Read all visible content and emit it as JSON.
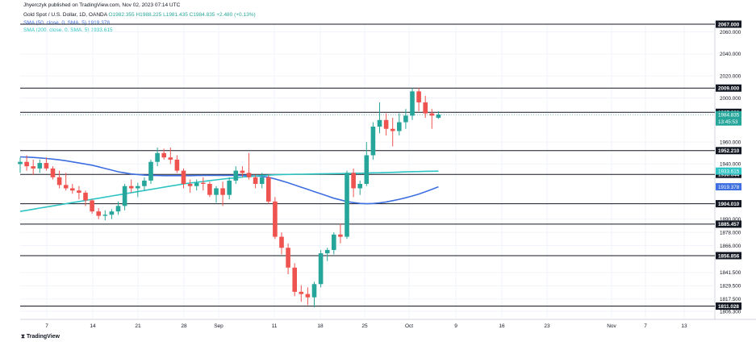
{
  "header": {
    "published": "Jhyerczyk published on TradingView.com, Nov 02, 2023 07:14 UTC",
    "symbol": "Gold Spot / U.S. Dollar, 1D, OANDA",
    "ohlc": "O1982.355 H1988.225 L1981.435 C1984.835 +2.480 (+0.13%)",
    "sma50": "SMA (50, close, 0, SMA, 5) 1919.378",
    "sma200": "SMA (200, close, 0, SMA, 5) 1933.615"
  },
  "brand": "TradingView",
  "colors": {
    "up": "#26a69a",
    "down": "#ef5350",
    "sma50": "#3d6fe0",
    "sma200": "#2ec4c4",
    "level": "#131722"
  },
  "chart_data": {
    "type": "candlestick",
    "y_range": [
      1806.3,
      2067
    ],
    "y_ticks": [
      "2060.000",
      "2040.000",
      "2020.000",
      "2000.000",
      "1960.000",
      "1940.000",
      "1890.000",
      "1878.000",
      "1866.000",
      "1841.500",
      "1829.500",
      "1817.500",
      "1806.300"
    ],
    "x_ticks": [
      "7",
      "14",
      "21",
      "28",
      "Sep",
      "11",
      "18",
      "25",
      "Oct",
      "9",
      "16",
      "23",
      "Nov",
      "7",
      "13"
    ],
    "levels": [
      "2067.000",
      "2009.000",
      "1987.000",
      "1952.210",
      "1930.644",
      "1904.010",
      "1885.457",
      "1856.856",
      "1811.028"
    ],
    "price_label": "1984.835",
    "countdown_label": "13:45:53",
    "sma200_label": "1933.615",
    "sma50_label": "1919.378",
    "candles": [
      {
        "o": 1940,
        "h": 1946,
        "l": 1932,
        "c": 1942
      },
      {
        "o": 1942,
        "h": 1948,
        "l": 1934,
        "c": 1938
      },
      {
        "o": 1938,
        "h": 1944,
        "l": 1930,
        "c": 1936
      },
      {
        "o": 1936,
        "h": 1944,
        "l": 1932,
        "c": 1941
      },
      {
        "o": 1941,
        "h": 1946,
        "l": 1934,
        "c": 1936
      },
      {
        "o": 1936,
        "h": 1938,
        "l": 1926,
        "c": 1928
      },
      {
        "o": 1928,
        "h": 1934,
        "l": 1918,
        "c": 1921
      },
      {
        "o": 1921,
        "h": 1932,
        "l": 1916,
        "c": 1918
      },
      {
        "o": 1918,
        "h": 1922,
        "l": 1913,
        "c": 1916
      },
      {
        "o": 1916,
        "h": 1920,
        "l": 1908,
        "c": 1914
      },
      {
        "o": 1914,
        "h": 1916,
        "l": 1902,
        "c": 1907
      },
      {
        "o": 1907,
        "h": 1908,
        "l": 1895,
        "c": 1897
      },
      {
        "o": 1897,
        "h": 1900,
        "l": 1890,
        "c": 1893
      },
      {
        "o": 1893,
        "h": 1898,
        "l": 1889,
        "c": 1894
      },
      {
        "o": 1894,
        "h": 1899,
        "l": 1890,
        "c": 1897
      },
      {
        "o": 1897,
        "h": 1906,
        "l": 1894,
        "c": 1902
      },
      {
        "o": 1902,
        "h": 1922,
        "l": 1898,
        "c": 1920
      },
      {
        "o": 1920,
        "h": 1926,
        "l": 1914,
        "c": 1918
      },
      {
        "o": 1918,
        "h": 1923,
        "l": 1910,
        "c": 1920
      },
      {
        "o": 1920,
        "h": 1928,
        "l": 1916,
        "c": 1925
      },
      {
        "o": 1925,
        "h": 1944,
        "l": 1922,
        "c": 1942
      },
      {
        "o": 1942,
        "h": 1955,
        "l": 1938,
        "c": 1950
      },
      {
        "o": 1950,
        "h": 1954,
        "l": 1944,
        "c": 1946
      },
      {
        "o": 1946,
        "h": 1955,
        "l": 1940,
        "c": 1944
      },
      {
        "o": 1944,
        "h": 1948,
        "l": 1932,
        "c": 1934
      },
      {
        "o": 1934,
        "h": 1936,
        "l": 1918,
        "c": 1922
      },
      {
        "o": 1922,
        "h": 1926,
        "l": 1914,
        "c": 1920
      },
      {
        "o": 1920,
        "h": 1926,
        "l": 1916,
        "c": 1923
      },
      {
        "o": 1923,
        "h": 1928,
        "l": 1916,
        "c": 1922
      },
      {
        "o": 1922,
        "h": 1924,
        "l": 1910,
        "c": 1912
      },
      {
        "o": 1912,
        "h": 1920,
        "l": 1905,
        "c": 1918
      },
      {
        "o": 1918,
        "h": 1924,
        "l": 1902,
        "c": 1912
      },
      {
        "o": 1912,
        "h": 1928,
        "l": 1908,
        "c": 1925
      },
      {
        "o": 1925,
        "h": 1938,
        "l": 1922,
        "c": 1934
      },
      {
        "o": 1934,
        "h": 1938,
        "l": 1928,
        "c": 1932
      },
      {
        "o": 1932,
        "h": 1950,
        "l": 1926,
        "c": 1928
      },
      {
        "o": 1928,
        "h": 1930,
        "l": 1918,
        "c": 1922
      },
      {
        "o": 1922,
        "h": 1932,
        "l": 1918,
        "c": 1928
      },
      {
        "o": 1928,
        "h": 1930,
        "l": 1904,
        "c": 1906
      },
      {
        "o": 1906,
        "h": 1910,
        "l": 1872,
        "c": 1874
      },
      {
        "o": 1874,
        "h": 1878,
        "l": 1858,
        "c": 1864
      },
      {
        "o": 1864,
        "h": 1868,
        "l": 1840,
        "c": 1846
      },
      {
        "o": 1846,
        "h": 1850,
        "l": 1820,
        "c": 1824
      },
      {
        "o": 1824,
        "h": 1830,
        "l": 1815,
        "c": 1822
      },
      {
        "o": 1822,
        "h": 1828,
        "l": 1812,
        "c": 1819
      },
      {
        "o": 1819,
        "h": 1833,
        "l": 1810,
        "c": 1831
      },
      {
        "o": 1831,
        "h": 1862,
        "l": 1828,
        "c": 1859
      },
      {
        "o": 1859,
        "h": 1864,
        "l": 1852,
        "c": 1862
      },
      {
        "o": 1862,
        "h": 1878,
        "l": 1858,
        "c": 1876
      },
      {
        "o": 1876,
        "h": 1886,
        "l": 1868,
        "c": 1874
      },
      {
        "o": 1874,
        "h": 1934,
        "l": 1872,
        "c": 1932
      },
      {
        "o": 1932,
        "h": 1936,
        "l": 1910,
        "c": 1918
      },
      {
        "o": 1918,
        "h": 1925,
        "l": 1912,
        "c": 1922
      },
      {
        "o": 1922,
        "h": 1960,
        "l": 1920,
        "c": 1948
      },
      {
        "o": 1948,
        "h": 1978,
        "l": 1944,
        "c": 1974
      },
      {
        "o": 1974,
        "h": 1996,
        "l": 1968,
        "c": 1980
      },
      {
        "o": 1980,
        "h": 1986,
        "l": 1966,
        "c": 1972
      },
      {
        "o": 1972,
        "h": 1982,
        "l": 1956,
        "c": 1970
      },
      {
        "o": 1970,
        "h": 1986,
        "l": 1966,
        "c": 1978
      },
      {
        "o": 1978,
        "h": 1990,
        "l": 1972,
        "c": 1984
      },
      {
        "o": 1984,
        "h": 2009,
        "l": 1980,
        "c": 2006
      },
      {
        "o": 2006,
        "h": 2009,
        "l": 1988,
        "c": 1996
      },
      {
        "o": 1996,
        "h": 2002,
        "l": 1982,
        "c": 1986
      },
      {
        "o": 1986,
        "h": 1990,
        "l": 1972,
        "c": 1984
      },
      {
        "o": 1982,
        "h": 1988,
        "l": 1981,
        "c": 1985
      }
    ],
    "sma50": [
      1946.5,
      1946.3,
      1946,
      1945.6,
      1945.1,
      1944.5,
      1943.8,
      1943,
      1942,
      1941,
      1940,
      1939,
      1937.5,
      1936,
      1934.5,
      1933,
      1932,
      1931,
      1930.5,
      1930,
      1929.8,
      1929.6,
      1929.5,
      1929.5,
      1929.5,
      1929.5,
      1929.5,
      1929.6,
      1929.7,
      1929.8,
      1929.8,
      1929.8,
      1929.8,
      1929.8,
      1929.7,
      1929.5,
      1929.2,
      1928.8,
      1928,
      1926.5,
      1924.8,
      1923,
      1921,
      1919,
      1917,
      1915,
      1913,
      1911,
      1909,
      1907.5,
      1906,
      1905,
      1904.3,
      1904,
      1904.2,
      1904.8,
      1905.6,
      1906.8,
      1908,
      1909.4,
      1911,
      1912.8,
      1914.8,
      1917,
      1919.4
    ],
    "sma200": [
      1897,
      1898,
      1899,
      1900,
      1901,
      1902,
      1903,
      1904,
      1905,
      1906,
      1907,
      1908,
      1909,
      1910,
      1911,
      1912,
      1913,
      1914,
      1915,
      1916,
      1917,
      1918,
      1919,
      1920,
      1921,
      1922,
      1922.8,
      1923.5,
      1924.2,
      1925,
      1925.7,
      1926.4,
      1927,
      1927.6,
      1928.2,
      1928.7,
      1929.2,
      1929.6,
      1930,
      1930.3,
      1930.5,
      1930.6,
      1930.7,
      1930.8,
      1930.9,
      1931,
      1931.1,
      1931.2,
      1931.3,
      1931.4,
      1931.5,
      1931.6,
      1931.7,
      1931.8,
      1932,
      1932.1,
      1932.3,
      1932.5,
      1932.7,
      1932.9,
      1933.1,
      1933.2,
      1933.4,
      1933.5,
      1933.6
    ]
  }
}
